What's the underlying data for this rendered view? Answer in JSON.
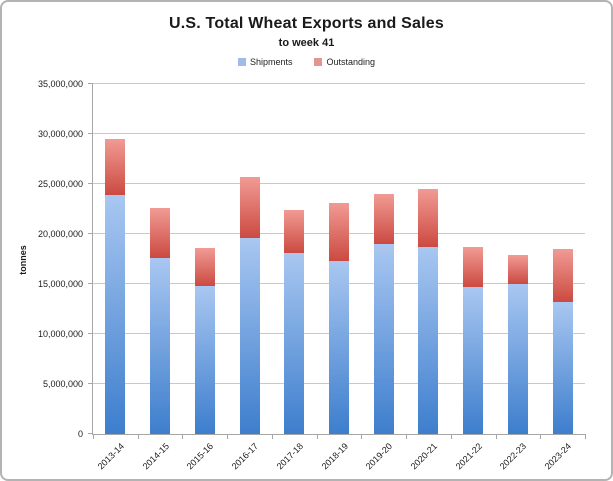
{
  "chart_data": {
    "type": "bar",
    "stacked": true,
    "title": "U.S. Total Wheat Exports and Sales",
    "subtitle": "to week 41",
    "xlabel": "",
    "ylabel": "tonnes",
    "categories": [
      "2013-14",
      "2014-15",
      "2015-16",
      "2016-17",
      "2017-18",
      "2018-19",
      "2019-20",
      "2020-21",
      "2021-22",
      "2022-23",
      "2023-24"
    ],
    "series": [
      {
        "name": "Shipments",
        "legend_color": "#9dbde6",
        "color_top": "#a9c7f1",
        "color_bottom": "#3d7ecd",
        "values": [
          23900000,
          17600000,
          14800000,
          19600000,
          18100000,
          17300000,
          19000000,
          18700000,
          14700000,
          15000000,
          13200000
        ]
      },
      {
        "name": "Outstanding",
        "legend_color": "#e5948f",
        "color_top": "#f19b94",
        "color_bottom": "#cb4a41",
        "values": [
          5600000,
          5000000,
          3800000,
          6100000,
          4300000,
          5800000,
          5000000,
          5800000,
          4000000,
          2900000,
          5300000
        ]
      }
    ],
    "ylim": [
      0,
      35000000
    ],
    "ytick_step": 5000000,
    "ytick_labels": [
      "0",
      "5,000,000",
      "10,000,000",
      "15,000,000",
      "20,000,000",
      "25,000,000",
      "30,000,000",
      "35,000,000"
    ],
    "grid": true,
    "legend_position": "top",
    "colors": {
      "gridline": "#c9c9c9",
      "axis": "#a6a6a6",
      "frame_border": "#b3b3b3"
    }
  }
}
